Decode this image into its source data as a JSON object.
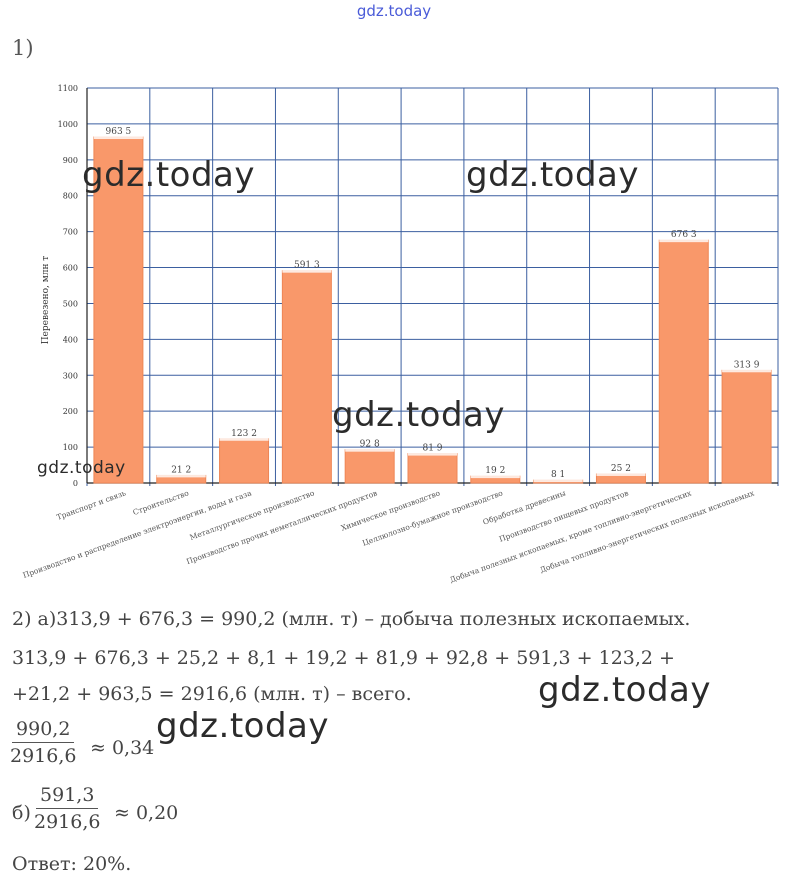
{
  "header": {
    "site": "gdz.today",
    "task_number": "1)"
  },
  "watermarks": [
    "gdz.today",
    "gdz.today",
    "gdz.today",
    "gdz.today",
    "gdz.today",
    "gdz.today"
  ],
  "chart_data": {
    "type": "bar",
    "title": "",
    "xlabel": "",
    "ylabel": "Перевезено, млн т",
    "ylim": [
      0,
      1100
    ],
    "yticks": [
      0,
      100,
      200,
      300,
      400,
      500,
      600,
      700,
      800,
      900,
      1000,
      1100
    ],
    "grid": true,
    "bar_color": "#f9986a",
    "grid_color": "#3b5fa0",
    "categories": [
      "Транспорт и связь",
      "Строительство",
      "Производство и распределение электроэнергии, воды и газа",
      "Металлургическое производство",
      "Производство прочих неметаллических продуктов",
      "Химическое производство",
      "Целлюлозно-бумажное производство",
      "Обработка древесины",
      "Производство пищевых продуктов",
      "Добыча полезных ископаемых, кроме топливно-энергетических",
      "Добыча топливно-энергетических полезных ископаемых"
    ],
    "values": [
      963.5,
      21.2,
      123.2,
      591.3,
      92.8,
      81.9,
      19.2,
      8.1,
      25.2,
      676.3,
      313.9
    ],
    "value_labels": [
      "963 5",
      "21 2",
      "123 2",
      "591 3",
      "92 8",
      "81 9",
      "19 2",
      "8 1",
      "25 2",
      "676 3",
      "313 9"
    ]
  },
  "solution": {
    "line1": "2) а)313,9 + 676,3 = 990,2 (млн. т) – добыча полезных ископаемых.",
    "line2": "313,9 + 676,3 + 25,2 + 8,1 + 19,2 + 81,9 + 92,8 + 591,3 + 123,2 +",
    "line3": "+21,2 + 963,5 = 2916,6 (млн. т) – всего.",
    "frac_a": {
      "num": "990,2",
      "den": "2916,6",
      "result": "≈ 0,34"
    },
    "b_label": "б)",
    "frac_b": {
      "num": "591,3",
      "den": "2916,6",
      "result": "≈ 0,20"
    },
    "answer": "Ответ: 20%."
  }
}
